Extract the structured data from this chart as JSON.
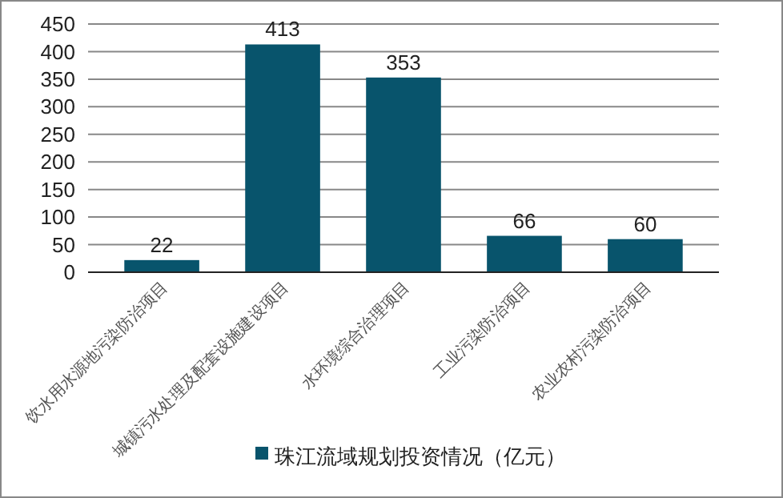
{
  "chart_data": {
    "type": "bar",
    "categories": [
      "饮水用水源地污染防治项目",
      "城镇污水处理及配套设施建设项目",
      "水环境综合治理项目",
      "工业污染防治项目",
      "农业农村污染防治项目"
    ],
    "series": [
      {
        "name": "珠江流域规划投资情况（亿元）",
        "color": "#08546c",
        "values": [
          22,
          413,
          353,
          66,
          60
        ]
      }
    ],
    "ylim": [
      0,
      450
    ],
    "yticks": [
      0,
      50,
      100,
      150,
      200,
      250,
      300,
      350,
      400,
      450
    ],
    "grid": "y",
    "legend": "bottom",
    "data_labels": true
  }
}
